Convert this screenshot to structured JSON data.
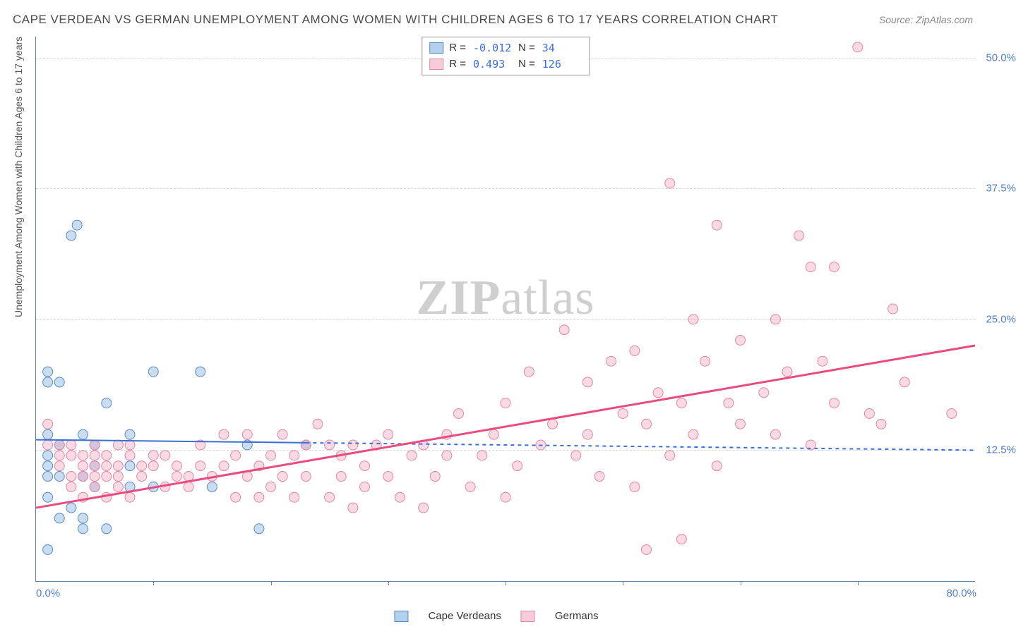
{
  "title": "CAPE VERDEAN VS GERMAN UNEMPLOYMENT AMONG WOMEN WITH CHILDREN AGES 6 TO 17 YEARS CORRELATION CHART",
  "source": "Source: ZipAtlas.com",
  "ylabel": "Unemployment Among Women with Children Ages 6 to 17 years",
  "watermark": {
    "bold": "ZIP",
    "rest": "atlas"
  },
  "chart": {
    "type": "scatter-with-regression",
    "xlim": [
      0,
      80
    ],
    "ylim": [
      0,
      52
    ],
    "xtick_labels": {
      "min": "0.0%",
      "max": "80.0%"
    },
    "xtick_positions": [
      10,
      20,
      30,
      40,
      50,
      60,
      70
    ],
    "ytick_labels": [
      "12.5%",
      "25.0%",
      "37.5%",
      "50.0%"
    ],
    "ytick_values": [
      12.5,
      25.0,
      37.5,
      50.0
    ],
    "grid_color": "#d8d8d8",
    "axis_color": "#5b7fa6",
    "background_color": "#ffffff",
    "marker_radius": 7,
    "marker_stroke_width": 1,
    "series": [
      {
        "name": "Cape Verdeans",
        "fill": "rgba(120,170,220,0.40)",
        "stroke": "#5b8bc5",
        "regression": {
          "y_at_x0": 13.5,
          "y_at_xmax": 12.5,
          "solid_until_x": 23,
          "color": "#3b6fd6",
          "width": 2,
          "dash": "5 5"
        },
        "stats": {
          "R": "-0.012",
          "N": "34"
        },
        "points": [
          [
            1,
            3
          ],
          [
            1,
            8
          ],
          [
            1,
            10
          ],
          [
            1,
            11
          ],
          [
            1,
            12
          ],
          [
            1,
            14
          ],
          [
            1,
            19
          ],
          [
            1,
            20
          ],
          [
            2,
            6
          ],
          [
            2,
            10
          ],
          [
            2,
            13
          ],
          [
            2,
            19
          ],
          [
            3,
            7
          ],
          [
            3,
            33
          ],
          [
            3.5,
            34
          ],
          [
            4,
            5
          ],
          [
            4,
            6
          ],
          [
            4,
            10
          ],
          [
            4,
            14
          ],
          [
            5,
            9
          ],
          [
            5,
            11
          ],
          [
            5,
            13
          ],
          [
            6,
            5
          ],
          [
            6,
            17
          ],
          [
            8,
            9
          ],
          [
            8,
            11
          ],
          [
            8,
            14
          ],
          [
            10,
            9
          ],
          [
            10,
            20
          ],
          [
            14,
            20
          ],
          [
            15,
            9
          ],
          [
            18,
            13
          ],
          [
            19,
            5
          ],
          [
            23,
            13
          ]
        ]
      },
      {
        "name": "Germans",
        "fill": "rgba(240,160,185,0.40)",
        "stroke": "#e386a8",
        "regression": {
          "y_at_x0": 7.0,
          "y_at_xmax": 22.5,
          "solid_until_x": 80,
          "color": "#ea4b7f",
          "width": 3,
          "dash": null
        },
        "stats": {
          "R": "0.493",
          "N": "126"
        },
        "points": [
          [
            1,
            13
          ],
          [
            1,
            15
          ],
          [
            2,
            11
          ],
          [
            2,
            12
          ],
          [
            2,
            13
          ],
          [
            3,
            9
          ],
          [
            3,
            10
          ],
          [
            3,
            12
          ],
          [
            3,
            13
          ],
          [
            4,
            8
          ],
          [
            4,
            10
          ],
          [
            4,
            11
          ],
          [
            4,
            12
          ],
          [
            5,
            9
          ],
          [
            5,
            10
          ],
          [
            5,
            11
          ],
          [
            5,
            12
          ],
          [
            5,
            13
          ],
          [
            6,
            8
          ],
          [
            6,
            10
          ],
          [
            6,
            11
          ],
          [
            6,
            12
          ],
          [
            7,
            9
          ],
          [
            7,
            10
          ],
          [
            7,
            11
          ],
          [
            7,
            13
          ],
          [
            8,
            8
          ],
          [
            8,
            12
          ],
          [
            8,
            13
          ],
          [
            9,
            10
          ],
          [
            9,
            11
          ],
          [
            10,
            11
          ],
          [
            10,
            12
          ],
          [
            11,
            9
          ],
          [
            11,
            12
          ],
          [
            12,
            10
          ],
          [
            12,
            11
          ],
          [
            13,
            9
          ],
          [
            13,
            10
          ],
          [
            14,
            11
          ],
          [
            14,
            13
          ],
          [
            15,
            10
          ],
          [
            16,
            11
          ],
          [
            16,
            14
          ],
          [
            17,
            8
          ],
          [
            17,
            12
          ],
          [
            18,
            10
          ],
          [
            18,
            14
          ],
          [
            19,
            8
          ],
          [
            19,
            11
          ],
          [
            20,
            9
          ],
          [
            20,
            12
          ],
          [
            21,
            10
          ],
          [
            21,
            14
          ],
          [
            22,
            8
          ],
          [
            22,
            12
          ],
          [
            23,
            10
          ],
          [
            23,
            13
          ],
          [
            24,
            15
          ],
          [
            25,
            8
          ],
          [
            25,
            13
          ],
          [
            26,
            10
          ],
          [
            26,
            12
          ],
          [
            27,
            7
          ],
          [
            27,
            13
          ],
          [
            28,
            9
          ],
          [
            28,
            11
          ],
          [
            29,
            13
          ],
          [
            30,
            10
          ],
          [
            30,
            14
          ],
          [
            31,
            8
          ],
          [
            32,
            12
          ],
          [
            33,
            7
          ],
          [
            33,
            13
          ],
          [
            34,
            10
          ],
          [
            35,
            12
          ],
          [
            35,
            14
          ],
          [
            36,
            16
          ],
          [
            37,
            9
          ],
          [
            38,
            12
          ],
          [
            39,
            14
          ],
          [
            40,
            8
          ],
          [
            40,
            17
          ],
          [
            41,
            11
          ],
          [
            42,
            20
          ],
          [
            43,
            13
          ],
          [
            44,
            15
          ],
          [
            45,
            24
          ],
          [
            46,
            12
          ],
          [
            47,
            14
          ],
          [
            47,
            19
          ],
          [
            48,
            10
          ],
          [
            49,
            21
          ],
          [
            50,
            16
          ],
          [
            51,
            9
          ],
          [
            51,
            22
          ],
          [
            52,
            15
          ],
          [
            52,
            3
          ],
          [
            53,
            18
          ],
          [
            54,
            12
          ],
          [
            54,
            38
          ],
          [
            55,
            17
          ],
          [
            55,
            4
          ],
          [
            56,
            14
          ],
          [
            56,
            25
          ],
          [
            57,
            21
          ],
          [
            58,
            11
          ],
          [
            58,
            34
          ],
          [
            59,
            17
          ],
          [
            60,
            15
          ],
          [
            60,
            23
          ],
          [
            62,
            18
          ],
          [
            63,
            25
          ],
          [
            63,
            14
          ],
          [
            64,
            20
          ],
          [
            65,
            33
          ],
          [
            66,
            13
          ],
          [
            66,
            30
          ],
          [
            67,
            21
          ],
          [
            68,
            17
          ],
          [
            68,
            30
          ],
          [
            70,
            51
          ],
          [
            71,
            16
          ],
          [
            72,
            15
          ],
          [
            73,
            26
          ],
          [
            74,
            19
          ],
          [
            78,
            16
          ]
        ]
      }
    ]
  },
  "legend": [
    {
      "swatch": "blue",
      "label": "Cape Verdeans"
    },
    {
      "swatch": "pink",
      "label": "Germans"
    }
  ]
}
